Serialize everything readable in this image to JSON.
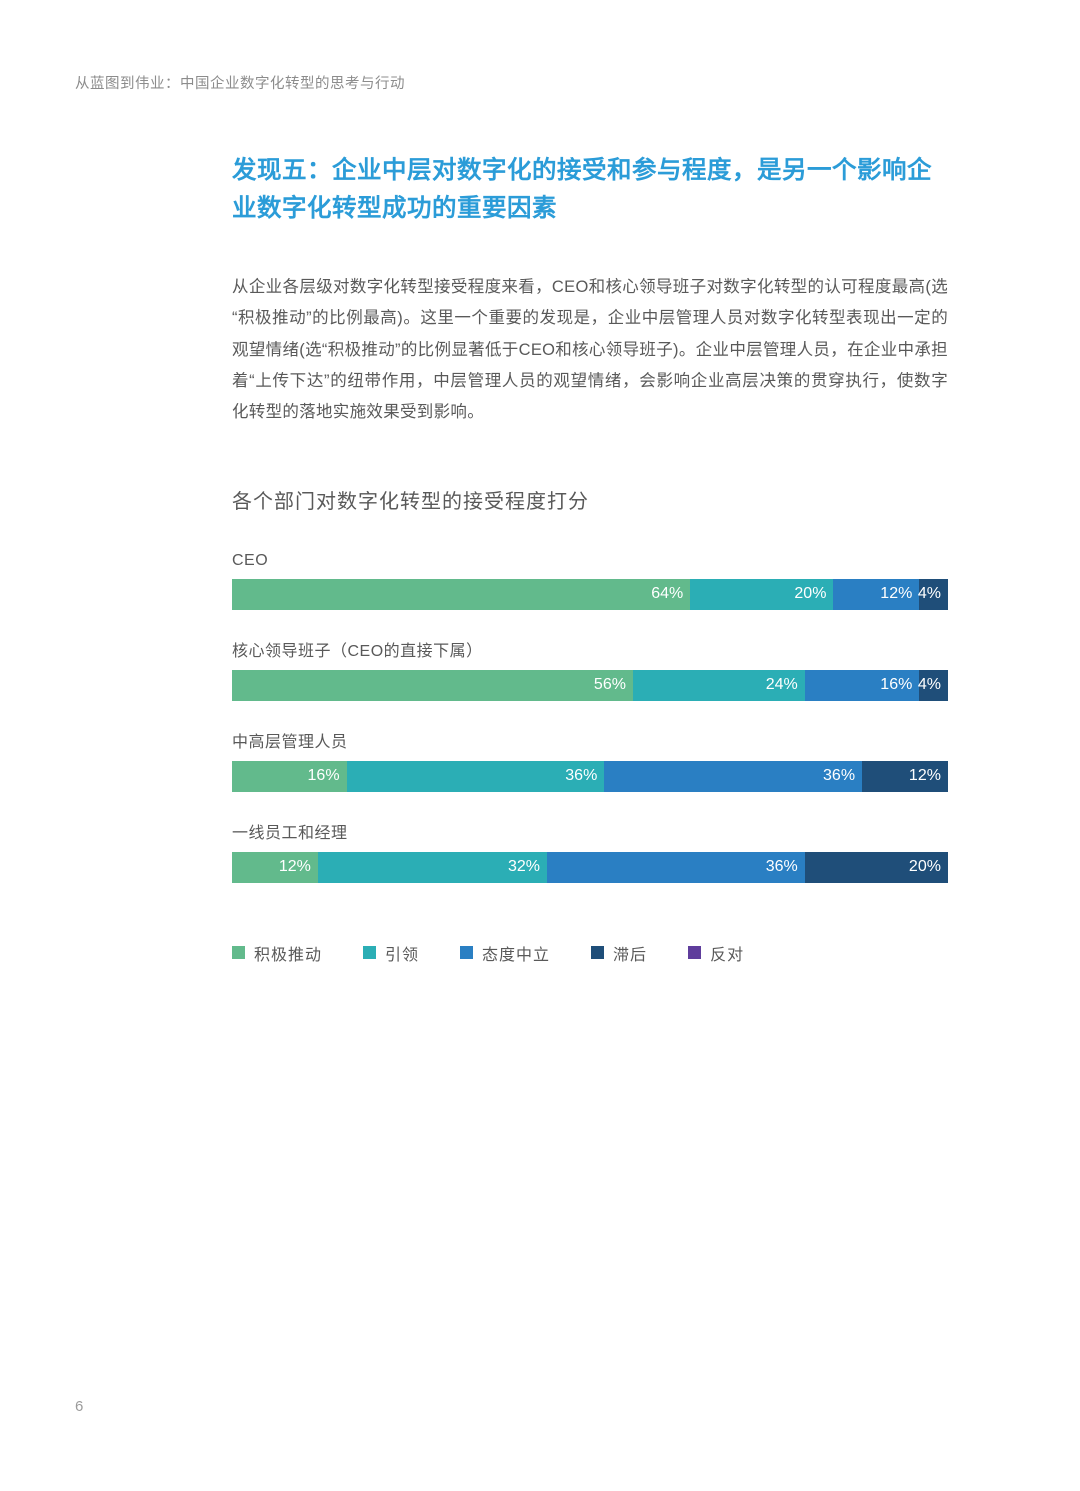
{
  "page": {
    "header": "从蓝图到伟业：中国企业数字化转型的思考与行动",
    "page_number": "6"
  },
  "finding": {
    "title": "发现五：企业中层对数字化的接受和参与程度，是另一个影响企业数字化转型成功的重要因素",
    "body": "从企业各层级对数字化转型接受程度来看，CEO和核心领导班子对数字化转型的认可程度最高(选“积极推动”的比例最高)。这里一个重要的发现是，企业中层管理人员对数字化转型表现出一定的观望情绪(选“积极推动”的比例显著低于CEO和核心领导班子)。企业中层管理人员，在企业中承担着“上传下达”的纽带作用，中层管理人员的观望情绪，会影响企业高层决策的贯穿执行，使数字化转型的落地实施效果受到影响。"
  },
  "chart_data": {
    "type": "bar",
    "variant": "horizontal-stacked",
    "title": "各个部门对数字化转型的接受程度打分",
    "unit": "%",
    "xlim": [
      0,
      100
    ],
    "grid": false,
    "legend_position": "bottom",
    "value_labels": "inside-right-white",
    "categories": [
      "CEO",
      "核心领导班子（CEO的直接下属）",
      "中高层管理人员",
      "一线员工和经理"
    ],
    "series": [
      {
        "name": "积极推动",
        "color": "#62ba8c",
        "values": [
          64,
          56,
          16,
          12
        ]
      },
      {
        "name": "引领",
        "color": "#2baeb5",
        "values": [
          20,
          24,
          36,
          32
        ]
      },
      {
        "name": "态度中立",
        "color": "#2a7fc3",
        "values": [
          12,
          16,
          36,
          36
        ]
      },
      {
        "name": "滞后",
        "color": "#1f4e79",
        "values": [
          4,
          4,
          12,
          20
        ]
      },
      {
        "name": "反对",
        "color": "#5f3d9c",
        "values": [
          0,
          0,
          0,
          0
        ]
      }
    ]
  }
}
